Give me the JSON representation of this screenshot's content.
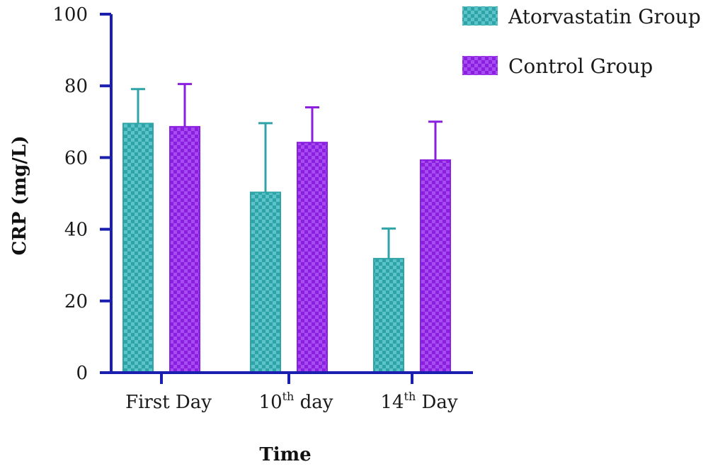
{
  "chart_data": {
    "type": "bar",
    "title": "",
    "xlabel": "Time",
    "ylabel": "CRP (mg/L)",
    "ylim": [
      0,
      100
    ],
    "yticks": [
      "0",
      "20",
      "40",
      "60",
      "80",
      "100"
    ],
    "categories": [
      {
        "base": "First Day",
        "sup": "",
        "rest": ""
      },
      {
        "base": "10",
        "sup": "th",
        "rest": " day"
      },
      {
        "base": "14",
        "sup": "th",
        "rest": " Day"
      }
    ],
    "series": [
      {
        "name": "Atorvastatin Group",
        "color": "#2ea4a9",
        "values": [
          69.5,
          50.3,
          31.8
        ],
        "errors": [
          9.6,
          19.3,
          8.4
        ]
      },
      {
        "name": "Control Group",
        "color": "#8a1fe0",
        "values": [
          68.6,
          64.2,
          59.3
        ],
        "errors": [
          11.9,
          9.8,
          10.7
        ]
      }
    ],
    "legend_position": "top-right",
    "grid": false,
    "axis_color": "#1a1fb0"
  }
}
